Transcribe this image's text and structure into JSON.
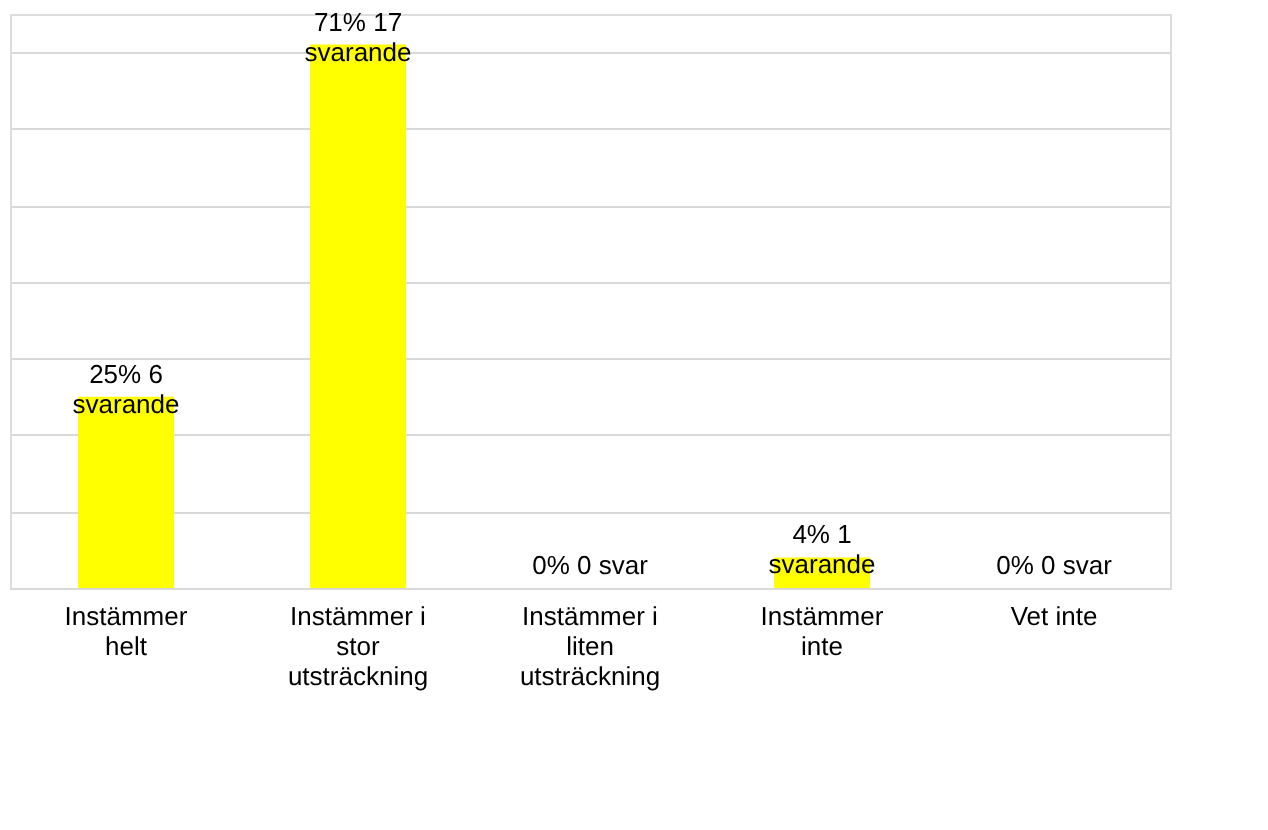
{
  "chart_data": {
    "type": "bar",
    "categories": [
      "Instämmer helt",
      "Instämmer i stor utsträckning",
      "Instämmer i liten utsträckning",
      "Instämmer inte",
      "Vet inte"
    ],
    "values": [
      25,
      71,
      0,
      4,
      0
    ],
    "value_labels": [
      "25% 6 svarande",
      "71% 17 svarande",
      "0% 0 svar",
      "4% 1 svarande",
      "0% 0 svar"
    ],
    "color": "#ffff00",
    "ylim": [
      0,
      75
    ],
    "grid": "y",
    "tick_labels": "x"
  }
}
